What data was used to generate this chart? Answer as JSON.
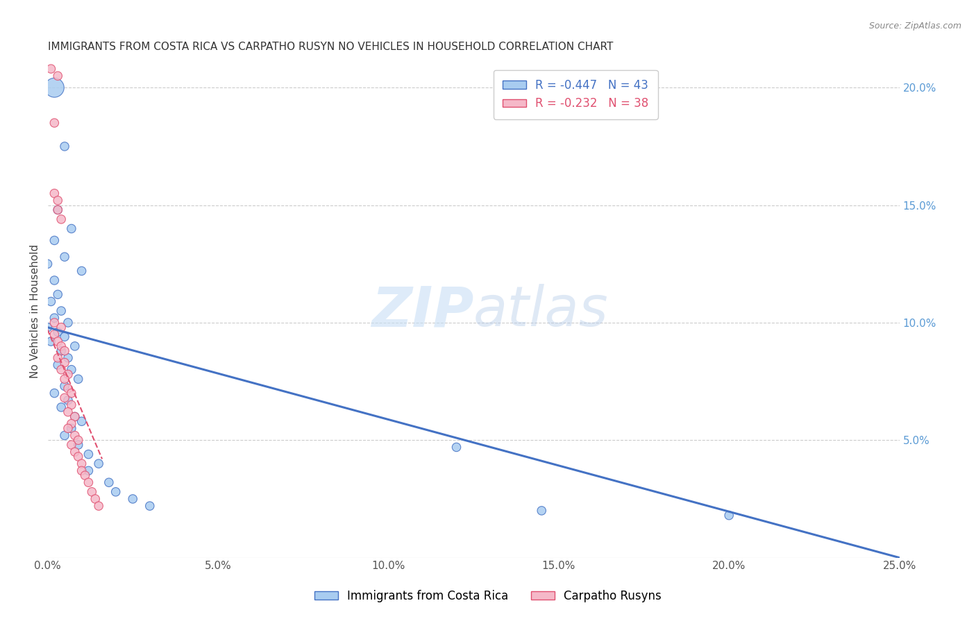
{
  "title": "IMMIGRANTS FROM COSTA RICA VS CARPATHO RUSYN NO VEHICLES IN HOUSEHOLD CORRELATION CHART",
  "source": "Source: ZipAtlas.com",
  "ylabel": "No Vehicles in Household",
  "xlim": [
    0.0,
    0.25
  ],
  "ylim": [
    0.0,
    0.21
  ],
  "xticks": [
    0.0,
    0.05,
    0.1,
    0.15,
    0.2,
    0.25
  ],
  "yticks": [
    0.05,
    0.1,
    0.15,
    0.2
  ],
  "xticklabels": [
    "0.0%",
    "5.0%",
    "10.0%",
    "15.0%",
    "20.0%",
    "25.0%"
  ],
  "right_yticklabels": [
    "5.0%",
    "10.0%",
    "15.0%",
    "20.0%"
  ],
  "legend1_label": "R = -0.447   N = 43",
  "legend2_label": "R = -0.232   N = 38",
  "color_blue": "#A8CCF0",
  "color_pink": "#F5B8C8",
  "line_blue": "#4472C4",
  "line_pink": "#E05070",
  "watermark_zip": "ZIP",
  "watermark_atlas": "atlas",
  "blue_scatter": [
    [
      0.002,
      0.2
    ],
    [
      0.005,
      0.175
    ],
    [
      0.003,
      0.148
    ],
    [
      0.007,
      0.14
    ],
    [
      0.002,
      0.135
    ],
    [
      0.005,
      0.128
    ],
    [
      0.0,
      0.125
    ],
    [
      0.01,
      0.122
    ],
    [
      0.002,
      0.118
    ],
    [
      0.003,
      0.112
    ],
    [
      0.001,
      0.109
    ],
    [
      0.004,
      0.105
    ],
    [
      0.002,
      0.102
    ],
    [
      0.006,
      0.1
    ],
    [
      0.0,
      0.098
    ],
    [
      0.003,
      0.096
    ],
    [
      0.005,
      0.094
    ],
    [
      0.001,
      0.092
    ],
    [
      0.008,
      0.09
    ],
    [
      0.004,
      0.088
    ],
    [
      0.006,
      0.085
    ],
    [
      0.003,
      0.082
    ],
    [
      0.007,
      0.08
    ],
    [
      0.009,
      0.076
    ],
    [
      0.005,
      0.073
    ],
    [
      0.002,
      0.07
    ],
    [
      0.006,
      0.067
    ],
    [
      0.004,
      0.064
    ],
    [
      0.008,
      0.06
    ],
    [
      0.01,
      0.058
    ],
    [
      0.007,
      0.055
    ],
    [
      0.005,
      0.052
    ],
    [
      0.009,
      0.048
    ],
    [
      0.012,
      0.044
    ],
    [
      0.015,
      0.04
    ],
    [
      0.012,
      0.037
    ],
    [
      0.018,
      0.032
    ],
    [
      0.02,
      0.028
    ],
    [
      0.025,
      0.025
    ],
    [
      0.03,
      0.022
    ],
    [
      0.12,
      0.047
    ],
    [
      0.145,
      0.02
    ],
    [
      0.2,
      0.018
    ]
  ],
  "blue_sizes": [
    400,
    80,
    80,
    80,
    80,
    80,
    80,
    80,
    80,
    80,
    80,
    80,
    80,
    80,
    80,
    80,
    80,
    80,
    80,
    80,
    80,
    80,
    80,
    80,
    80,
    80,
    80,
    80,
    80,
    80,
    80,
    80,
    80,
    80,
    80,
    80,
    80,
    80,
    80,
    80,
    80,
    80,
    80
  ],
  "pink_scatter": [
    [
      0.001,
      0.208
    ],
    [
      0.003,
      0.205
    ],
    [
      0.002,
      0.185
    ],
    [
      0.002,
      0.155
    ],
    [
      0.003,
      0.152
    ],
    [
      0.003,
      0.148
    ],
    [
      0.004,
      0.144
    ],
    [
      0.002,
      0.1
    ],
    [
      0.004,
      0.098
    ],
    [
      0.002,
      0.095
    ],
    [
      0.003,
      0.092
    ],
    [
      0.004,
      0.09
    ],
    [
      0.005,
      0.088
    ],
    [
      0.003,
      0.085
    ],
    [
      0.005,
      0.083
    ],
    [
      0.004,
      0.08
    ],
    [
      0.006,
      0.078
    ],
    [
      0.005,
      0.076
    ],
    [
      0.006,
      0.072
    ],
    [
      0.007,
      0.07
    ],
    [
      0.005,
      0.068
    ],
    [
      0.007,
      0.065
    ],
    [
      0.006,
      0.062
    ],
    [
      0.008,
      0.06
    ],
    [
      0.007,
      0.057
    ],
    [
      0.006,
      0.055
    ],
    [
      0.008,
      0.052
    ],
    [
      0.009,
      0.05
    ],
    [
      0.007,
      0.048
    ],
    [
      0.008,
      0.045
    ],
    [
      0.009,
      0.043
    ],
    [
      0.01,
      0.04
    ],
    [
      0.01,
      0.037
    ],
    [
      0.011,
      0.035
    ],
    [
      0.012,
      0.032
    ],
    [
      0.013,
      0.028
    ],
    [
      0.014,
      0.025
    ],
    [
      0.015,
      0.022
    ]
  ],
  "pink_sizes": [
    80,
    80,
    80,
    80,
    80,
    80,
    80,
    80,
    80,
    80,
    80,
    80,
    80,
    80,
    80,
    80,
    80,
    80,
    80,
    80,
    80,
    80,
    80,
    80,
    80,
    80,
    80,
    80,
    80,
    80,
    80,
    80,
    80,
    80,
    80,
    80,
    80,
    80
  ],
  "blue_line_x": [
    0.0,
    0.25
  ],
  "blue_line_y": [
    0.098,
    0.0
  ],
  "pink_line_x": [
    0.0,
    0.016
  ],
  "pink_line_y": [
    0.097,
    0.042
  ],
  "title_fontsize": 11,
  "axis_label_fontsize": 11,
  "tick_fontsize": 11,
  "legend_fontsize": 12,
  "background_color": "#ffffff",
  "grid_color": "#cccccc"
}
